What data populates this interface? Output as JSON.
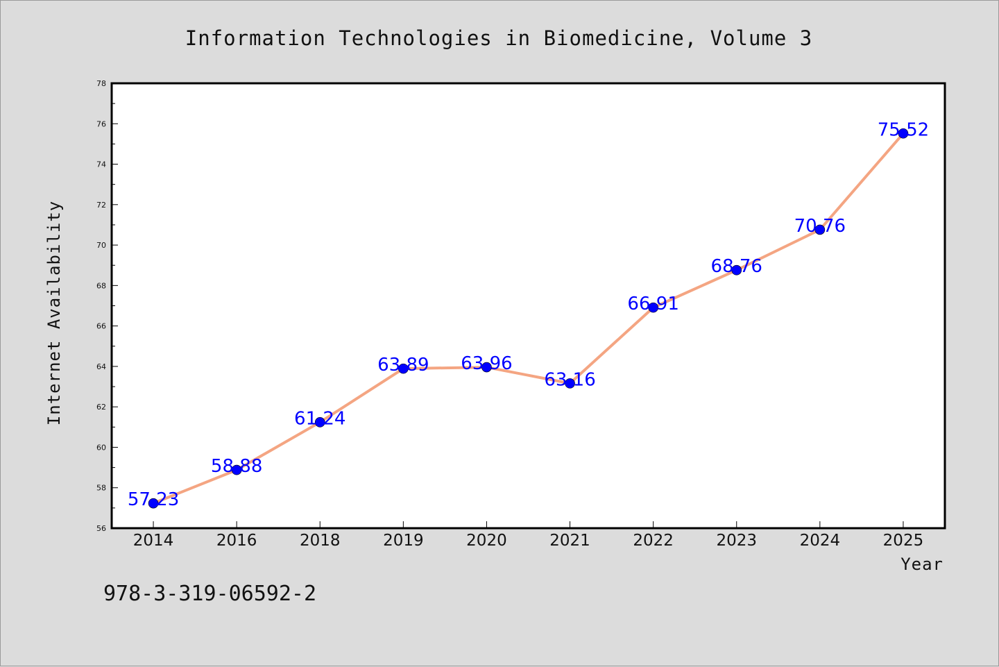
{
  "chart_data": {
    "type": "line",
    "title": "Information Technologies in Biomedicine, Volume 3",
    "xlabel": "Year",
    "ylabel": "Internet Availability",
    "categories": [
      "2014",
      "2016",
      "2018",
      "2019",
      "2020",
      "2021",
      "2022",
      "2023",
      "2024",
      "2025"
    ],
    "series": [
      {
        "values": [
          57.23,
          58.88,
          61.24,
          63.89,
          63.96,
          63.16,
          66.91,
          68.76,
          70.76,
          75.52
        ],
        "data_labels": [
          "57.23",
          "58.88",
          "61.24",
          "63.89",
          "63.96",
          "63.16",
          "66.91",
          "68.76",
          "70.76",
          "75.52"
        ],
        "line_color": "#f4a582",
        "marker_color": "#0000ff"
      }
    ],
    "ylim": [
      56,
      78
    ],
    "yticks": [
      "56",
      "58",
      "60",
      "62",
      "64",
      "66",
      "68",
      "70",
      "72",
      "74",
      "76",
      "78"
    ],
    "grid": false,
    "legend": "none"
  },
  "footnote": "978-3-319-06592-2",
  "colors": {
    "background": "#dcdcdc",
    "plot_background": "#ffffff",
    "line": "#f4a582",
    "marker": "#0000ff",
    "data_label": "#0000ff"
  }
}
